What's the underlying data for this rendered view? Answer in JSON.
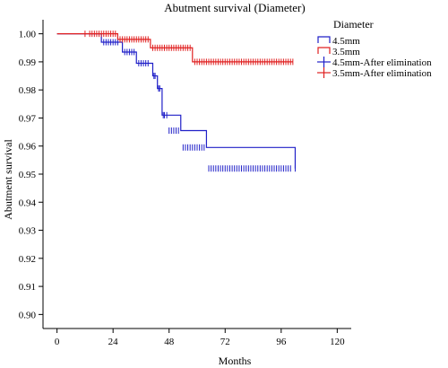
{
  "chart_data": {
    "type": "line",
    "title": "Abutment survival (Diameter)",
    "xlabel": "Months",
    "ylabel": "Abutment survival",
    "xlim": [
      -6,
      126
    ],
    "ylim": [
      0.895,
      1.005
    ],
    "xticks": [
      "0",
      "24",
      "48",
      "72",
      "96",
      "120"
    ],
    "xtick_values": [
      0,
      24,
      48,
      72,
      96,
      120
    ],
    "yticks": [
      "0.90",
      "0.91",
      "0.92",
      "0.93",
      "0.94",
      "0.95",
      "0.96",
      "0.97",
      "0.98",
      "0.99",
      "1.00"
    ],
    "ytick_values": [
      0.9,
      0.91,
      0.92,
      0.93,
      0.94,
      0.95,
      0.96,
      0.97,
      0.98,
      0.99,
      1.0
    ],
    "grid": false,
    "legend_title": "Diameter",
    "legend_position": "top-right",
    "series": [
      {
        "name": "4.5mm",
        "color": "#2020c8",
        "step_x": [
          0,
          19,
          28,
          34,
          41,
          43,
          45,
          53,
          64,
          102
        ],
        "step_y": [
          1.0,
          0.997,
          0.9935,
          0.9895,
          0.985,
          0.9805,
          0.971,
          0.9655,
          0.9595,
          0.952
        ],
        "censored": [
          [
            0.997,
            [
              20,
              21,
              22,
              23,
              24,
              25,
              26
            ]
          ],
          [
            0.9935,
            [
              29,
              30,
              31,
              32,
              33
            ]
          ],
          [
            0.9895,
            [
              35,
              36,
              37,
              38,
              39
            ]
          ],
          [
            0.985,
            [
              41.5,
              42
            ]
          ],
          [
            0.9805,
            [
              43.5,
              44
            ]
          ],
          [
            0.971,
            [
              45.5,
              46,
              47
            ]
          ],
          [
            0.9655,
            [
              48,
              49,
              50,
              51,
              52
            ]
          ],
          [
            0.9595,
            [
              54,
              55,
              56,
              57,
              58,
              59,
              60,
              61,
              62,
              63
            ]
          ],
          [
            0.952,
            [
              65,
              66,
              67,
              68,
              69,
              70,
              71,
              72,
              73,
              74,
              75,
              76,
              77,
              78,
              79,
              80,
              81,
              82,
              83,
              84,
              85,
              86,
              87,
              88,
              89,
              90,
              91,
              92,
              93,
              94,
              95,
              96,
              97,
              98,
              99,
              100,
              102
            ]
          ]
        ]
      },
      {
        "name": "3.5mm",
        "color": "#e02020",
        "step_x": [
          0,
          26,
          40,
          58,
          101
        ],
        "step_y": [
          1.0,
          0.998,
          0.995,
          0.99,
          0.99
        ],
        "censored": [
          [
            1.0,
            [
              12,
              14,
              15,
              16,
              17,
              18,
              19,
              20,
              21,
              22,
              23,
              24,
              25
            ]
          ],
          [
            0.998,
            [
              27,
              28,
              29,
              30,
              31,
              32,
              33,
              34,
              35,
              36,
              37,
              38,
              39
            ]
          ],
          [
            0.995,
            [
              41,
              42,
              43,
              44,
              45,
              46,
              47,
              48,
              49,
              50,
              51,
              52,
              53,
              54,
              55,
              56,
              57
            ]
          ],
          [
            0.99,
            [
              59,
              60,
              61,
              62,
              63,
              64,
              65,
              66,
              67,
              68,
              69,
              70,
              71,
              72,
              73,
              74,
              75,
              76,
              77,
              78,
              79,
              80,
              81,
              82,
              83,
              84,
              85,
              86,
              87,
              88,
              89,
              90,
              91,
              92,
              93,
              94,
              95,
              96,
              97,
              98,
              99,
              100,
              101
            ]
          ]
        ]
      }
    ],
    "legend_entries": [
      {
        "label": "4.5mm",
        "color": "#2020c8",
        "marker": "step"
      },
      {
        "label": "3.5mm",
        "color": "#e02020",
        "marker": "step"
      },
      {
        "label": "4.5mm-After elimination",
        "color": "#2020c8",
        "marker": "cross"
      },
      {
        "label": "3.5mm-After elimination",
        "color": "#e02020",
        "marker": "cross"
      }
    ]
  }
}
